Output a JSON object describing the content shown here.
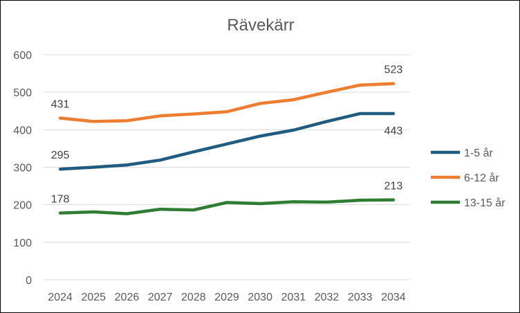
{
  "chart_data": {
    "type": "line",
    "title": "Rävekärr",
    "xlabel": "",
    "ylabel": "",
    "x": [
      "2024",
      "2025",
      "2026",
      "2027",
      "2028",
      "2029",
      "2030",
      "2031",
      "2032",
      "2033",
      "2034"
    ],
    "ylim": [
      0,
      600
    ],
    "yticks": [
      0,
      100,
      200,
      300,
      400,
      500,
      600
    ],
    "grid": true,
    "legend_position": "right",
    "series": [
      {
        "name": "1-5 år",
        "color": "#1f5c80",
        "values": [
          295,
          300,
          306,
          319,
          341,
          362,
          383,
          399,
          422,
          443,
          443
        ],
        "labels": [
          {
            "index": 0,
            "text": "295",
            "pos": "above"
          },
          {
            "index": 10,
            "text": "443",
            "pos": "below"
          }
        ]
      },
      {
        "name": "6-12 år",
        "color": "#ed7d31",
        "values": [
          431,
          422,
          424,
          437,
          442,
          448,
          470,
          480,
          500,
          519,
          523
        ],
        "labels": [
          {
            "index": 0,
            "text": "431",
            "pos": "above"
          },
          {
            "index": 10,
            "text": "523",
            "pos": "above"
          }
        ]
      },
      {
        "name": "13-15 år",
        "color": "#2e7d32",
        "values": [
          178,
          181,
          176,
          188,
          186,
          206,
          203,
          208,
          207,
          212,
          213
        ],
        "labels": [
          {
            "index": 0,
            "text": "178",
            "pos": "above"
          },
          {
            "index": 10,
            "text": "213",
            "pos": "above"
          }
        ]
      }
    ]
  }
}
